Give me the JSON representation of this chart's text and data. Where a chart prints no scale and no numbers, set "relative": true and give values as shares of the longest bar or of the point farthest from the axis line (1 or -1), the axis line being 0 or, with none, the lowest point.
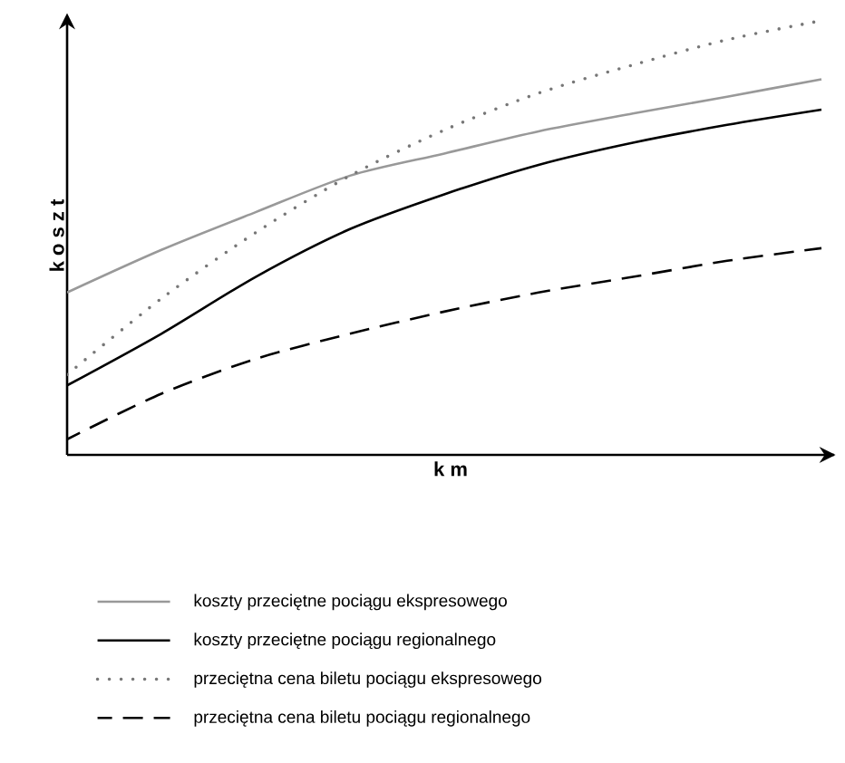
{
  "chart_data": {
    "type": "line",
    "relative": true,
    "xlabel": "k m",
    "ylabel": "k o s z t",
    "legend": "bottom",
    "categories": [
      null,
      null,
      null,
      null,
      null,
      null,
      null,
      null,
      null
    ],
    "series": [
      {
        "name": "koszty przeciętne pociągu ekspresowego",
        "color": "#999999",
        "line_style": "solid",
        "values": [
          0.374,
          0.472,
          0.559,
          0.643,
          0.694,
          0.745,
          0.786,
          0.825,
          0.865
        ]
      },
      {
        "name": "koszty przeciętne pociągu regionalnego",
        "color": "#000000",
        "line_style": "solid",
        "values": [
          0.16,
          0.279,
          0.41,
          0.52,
          0.6,
          0.668,
          0.719,
          0.76,
          0.795
        ]
      },
      {
        "name": "przeciętna cena biletu pociągu ekspresowego",
        "color": "#777777",
        "line_style": "dotted",
        "values": [
          0.185,
          0.36,
          0.512,
          0.643,
          0.748,
          0.833,
          0.898,
          0.956,
          1
        ]
      },
      {
        "name": "przeciętna cena biletu pociągu regionalnego",
        "color": "#000000",
        "line_style": "dashed",
        "values": [
          0.036,
          0.141,
          0.221,
          0.279,
          0.33,
          0.374,
          0.41,
          0.447,
          0.476
        ]
      }
    ]
  }
}
